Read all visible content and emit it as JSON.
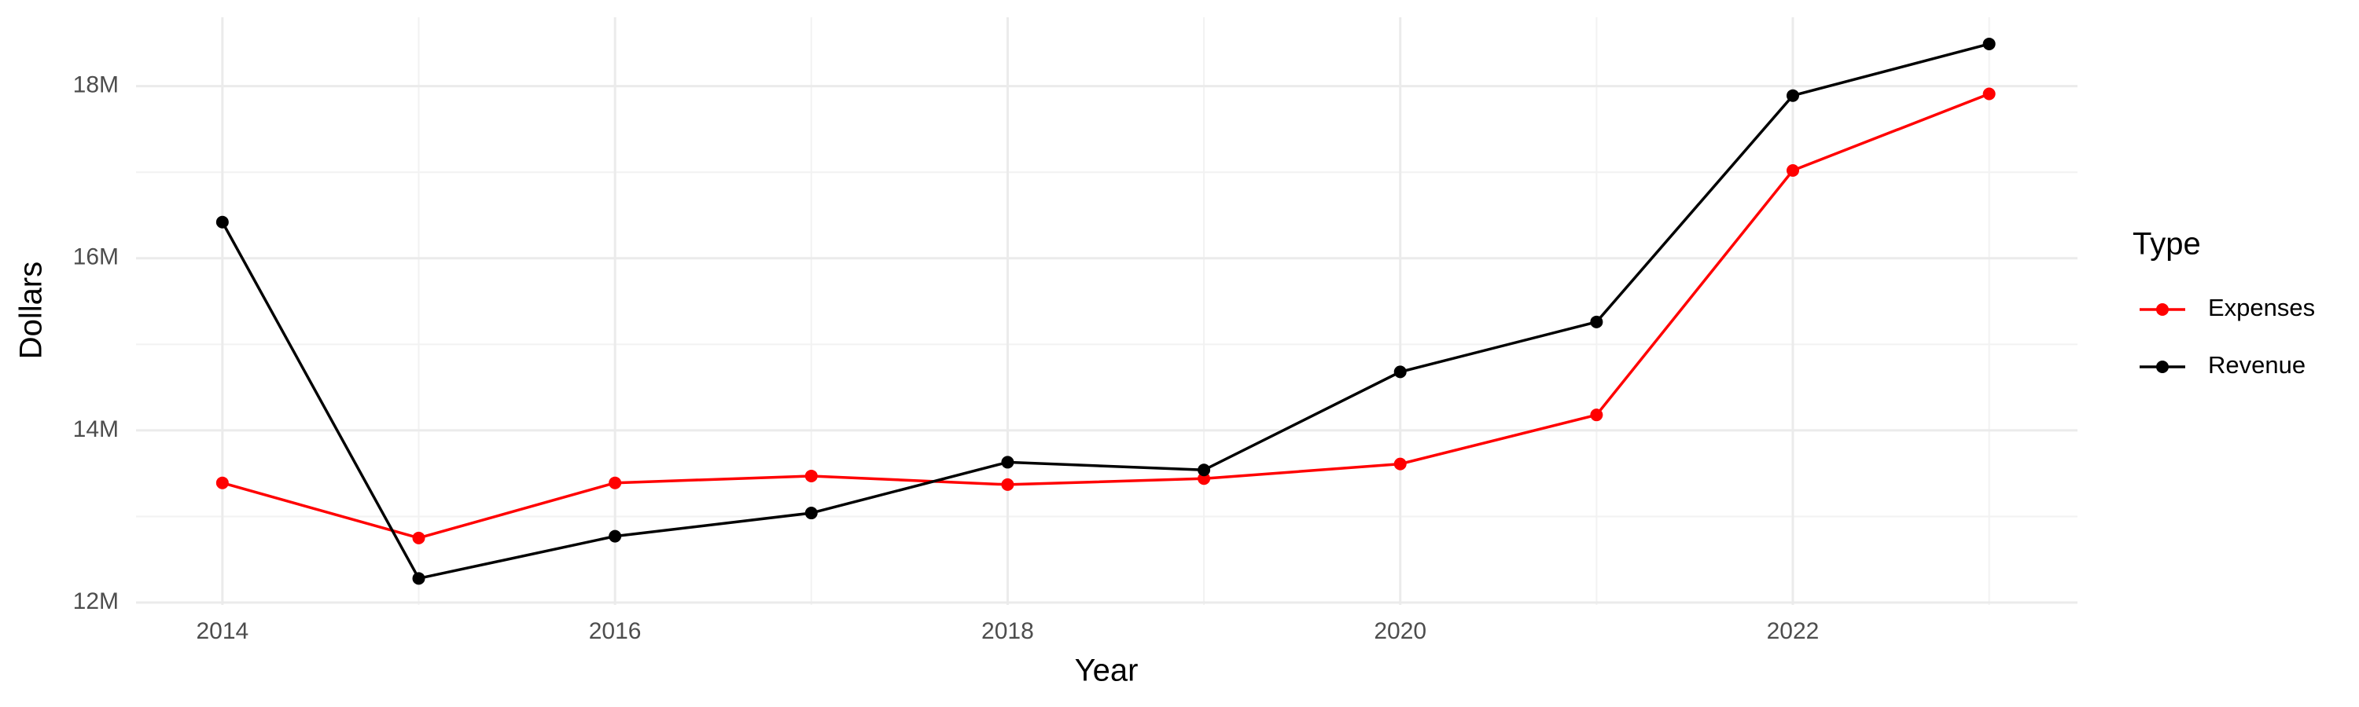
{
  "chart_data": {
    "type": "line",
    "x_label": "Year",
    "y_label": "Dollars",
    "legend_title": "Type",
    "legend_position": "right",
    "grid": true,
    "x": [
      2014,
      2015,
      2016,
      2017,
      2018,
      2019,
      2020,
      2021,
      2022,
      2023
    ],
    "series": [
      {
        "name": "Expenses",
        "color": "#ff0000",
        "values": [
          13390000,
          12750000,
          13390000,
          13470000,
          13370000,
          13440000,
          13610000,
          14180000,
          17020000,
          17910000
        ]
      },
      {
        "name": "Revenue",
        "color": "#000000",
        "values": [
          16420000,
          12280000,
          12770000,
          13040000,
          13630000,
          13540000,
          14680000,
          15260000,
          17890000,
          18490000
        ]
      }
    ],
    "xlim": [
      2013.56,
      2023.45
    ],
    "xticks": [
      2014,
      2016,
      2018,
      2020,
      2022
    ],
    "ylim": [
      12000000,
      18800000
    ],
    "yticks": [
      {
        "value": 12000000,
        "label": "12M"
      },
      {
        "value": 14000000,
        "label": "14M"
      },
      {
        "value": 16000000,
        "label": "16M"
      },
      {
        "value": 18000000,
        "label": "18M"
      }
    ]
  }
}
